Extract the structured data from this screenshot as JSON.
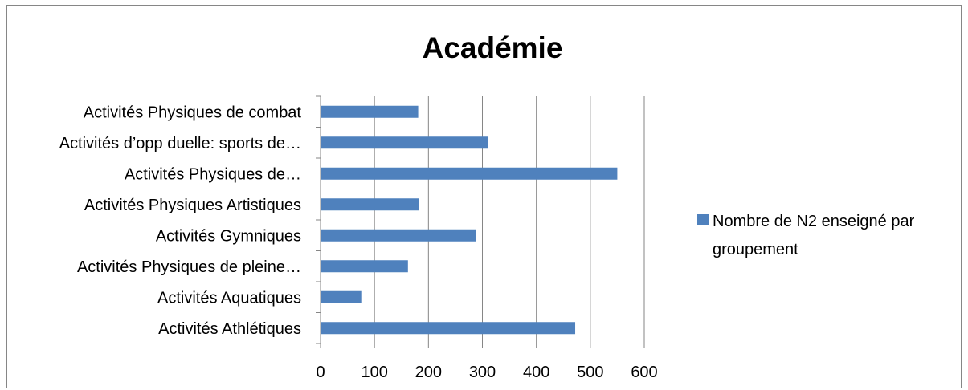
{
  "chart_data": {
    "type": "bar",
    "orientation": "horizontal",
    "title": "Académie",
    "xlabel": "",
    "ylabel": "",
    "categories": [
      "Activités Physiques de combat",
      "Activités d’opp duelle: sports de…",
      "Activités Physiques de…",
      "Activités Physiques Artistiques",
      "Activités Gymniques",
      "Activités Physiques de pleine…",
      "Activités Aquatiques",
      "Activités Athlétiques"
    ],
    "series": [
      {
        "name": "Nombre de N2 enseigné par groupement",
        "values": [
          181,
          310,
          550,
          183,
          288,
          162,
          77,
          472
        ],
        "color": "#4f81bd"
      }
    ],
    "xlim": [
      0,
      600
    ],
    "x_ticks": [
      0,
      100,
      200,
      300,
      400,
      500,
      600
    ],
    "grid": "vertical",
    "legend_position": "right",
    "legend_lines": [
      "Nombre de N2 enseigné par",
      "groupement"
    ]
  }
}
